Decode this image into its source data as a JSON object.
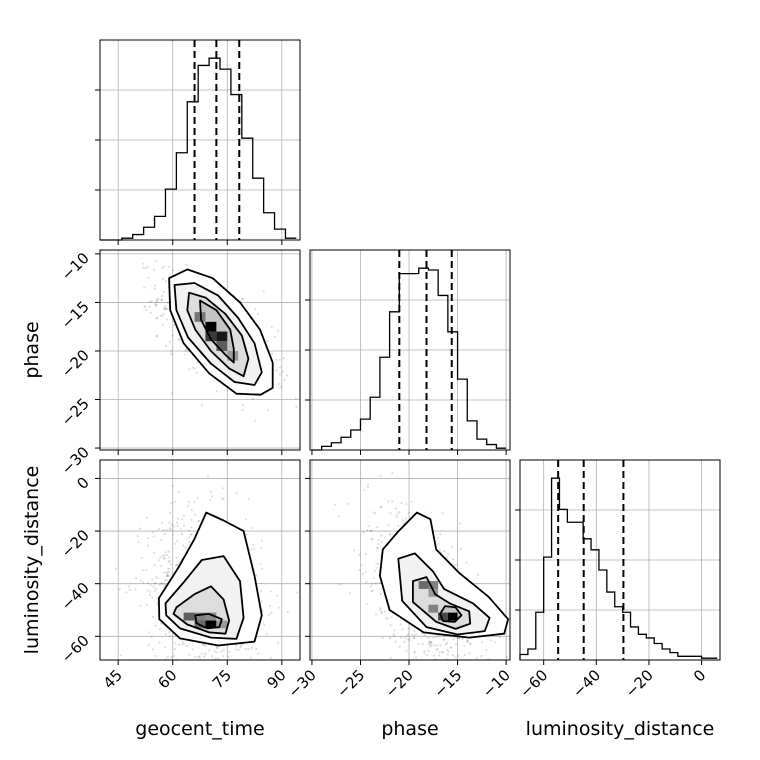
{
  "chart_data": {
    "type": "corner",
    "parameters": [
      {
        "name": "geocent_time",
        "range": [
          40,
          95
        ],
        "ticks": [
          45,
          60,
          75,
          90
        ],
        "tick_labels": [
          "45",
          "60",
          "75",
          "90"
        ],
        "quantiles": [
          66.0,
          72.0,
          78.3
        ],
        "histogram": {
          "bin_edges": [
            40,
            43,
            46,
            49,
            52,
            55,
            58,
            61,
            64,
            67,
            70,
            73,
            76,
            79,
            82,
            85,
            88,
            91,
            94
          ],
          "heights": [
            0,
            0,
            0.01,
            0.03,
            0.07,
            0.13,
            0.28,
            0.48,
            0.76,
            0.96,
            1.0,
            0.94,
            0.8,
            0.56,
            0.34,
            0.15,
            0.06,
            0.01
          ]
        }
      },
      {
        "name": "phase",
        "range": [
          -30.2,
          -9.6
        ],
        "ticks": [
          -30,
          -25,
          -20,
          -15,
          -10
        ],
        "tick_labels": [
          "−30",
          "−25",
          "−20",
          "−15",
          "−10"
        ],
        "quantiles": [
          -21.0,
          -18.2,
          -15.6
        ],
        "histogram": {
          "bin_edges": [
            -30.0,
            -29.0,
            -28.0,
            -27.0,
            -26.0,
            -25.0,
            -24.0,
            -23.0,
            -22.0,
            -21.0,
            -20.0,
            -19.0,
            -18.0,
            -17.0,
            -16.0,
            -15.0,
            -14.0,
            -13.0,
            -12.0,
            -11.0,
            -10.0
          ],
          "heights": [
            0,
            0.02,
            0.04,
            0.07,
            0.11,
            0.17,
            0.29,
            0.51,
            0.76,
            0.97,
            0.97,
            1.0,
            0.99,
            0.85,
            0.65,
            0.39,
            0.16,
            0.06,
            0.03,
            0.01
          ]
        }
      },
      {
        "name": "luminosity_distance",
        "range": [
          -69,
          7
        ],
        "ticks": [
          -60,
          -40,
          -20,
          0
        ],
        "tick_labels": [
          "−60",
          "−40",
          "−20",
          "0"
        ],
        "quantiles": [
          -54.5,
          -44.8,
          -29.7
        ],
        "histogram": {
          "bin_edges": [
            -69,
            -66,
            -63,
            -60,
            -57,
            -54,
            -51,
            -48,
            -45,
            -42,
            -39,
            -36,
            -33,
            -30,
            -27,
            -24,
            -21,
            -18,
            -15,
            -12,
            -9,
            -6,
            -3,
            0,
            3,
            6
          ],
          "heights": [
            0.03,
            0.06,
            0.26,
            0.56,
            0.99,
            0.82,
            0.75,
            0.75,
            0.66,
            0.6,
            0.49,
            0.37,
            0.29,
            0.26,
            0.18,
            0.14,
            0.12,
            0.09,
            0.06,
            0.04,
            0.02,
            0.02,
            0.02,
            0.01,
            0.01
          ]
        }
      }
    ],
    "pairs": [
      {
        "x": "geocent_time",
        "y": "phase",
        "mean": [
          72,
          -18.2
        ],
        "sd": [
          7.5,
          2.7
        ],
        "corr": -0.65,
        "cells": [
          {
            "x": 70.5,
            "y": -17.5,
            "w": 3,
            "h": 1,
            "v": 1.0
          },
          {
            "x": 73.5,
            "y": -18.5,
            "w": 3,
            "h": 1,
            "v": 0.9
          },
          {
            "x": 70.5,
            "y": -18.5,
            "w": 3,
            "h": 1,
            "v": 0.75
          },
          {
            "x": 67.5,
            "y": -16.5,
            "w": 3,
            "h": 1,
            "v": 0.5
          },
          {
            "x": 73.5,
            "y": -19.5,
            "w": 3,
            "h": 1,
            "v": 0.6
          },
          {
            "x": 76.5,
            "y": -20.5,
            "w": 3,
            "h": 1,
            "v": 0.35
          }
        ],
        "contours": [
          [
            [
              67.5,
              -14.8
            ],
            [
              72,
              -15.8
            ],
            [
              75.8,
              -17.8
            ],
            [
              76.8,
              -19.8
            ],
            [
              76.8,
              -21.2
            ],
            [
              74.5,
              -20.4
            ],
            [
              70.5,
              -18.8
            ],
            [
              67.8,
              -16.8
            ]
          ],
          [
            [
              64.5,
              -14
            ],
            [
              69,
              -14.5
            ],
            [
              74.5,
              -16.2
            ],
            [
              79,
              -18.4
            ],
            [
              80.8,
              -20.8
            ],
            [
              79.5,
              -22.6
            ],
            [
              75.5,
              -21.8
            ],
            [
              70.5,
              -20
            ],
            [
              66.2,
              -17.8
            ],
            [
              64,
              -15.8
            ]
          ],
          [
            [
              60.5,
              -13.2
            ],
            [
              66,
              -13
            ],
            [
              72.5,
              -14.3
            ],
            [
              78,
              -16.6
            ],
            [
              82.5,
              -19.2
            ],
            [
              84.5,
              -22.2
            ],
            [
              82.5,
              -23.5
            ],
            [
              77,
              -23.2
            ],
            [
              70.5,
              -21.3
            ],
            [
              64.2,
              -18.6
            ],
            [
              61,
              -15.8
            ]
          ],
          [
            [
              59,
              -12.5
            ],
            [
              64,
              -11.6
            ],
            [
              71,
              -12.5
            ],
            [
              78.5,
              -15
            ],
            [
              84,
              -17.8
            ],
            [
              87.5,
              -21.2
            ],
            [
              87.5,
              -23.8
            ],
            [
              84.2,
              -24.5
            ],
            [
              77.5,
              -24.4
            ],
            [
              70,
              -22.3
            ],
            [
              63,
              -19.2
            ],
            [
              59.3,
              -15.8
            ]
          ]
        ]
      },
      {
        "x": "geocent_time",
        "y": "luminosity_distance",
        "mean": [
          69,
          -44
        ],
        "sd": [
          7.5,
          15
        ],
        "corr": -0.12,
        "cells": [
          {
            "x": 70.5,
            "y": -55.5,
            "w": 3,
            "h": 3,
            "v": 1.0
          },
          {
            "x": 67.5,
            "y": -55.5,
            "w": 3,
            "h": 3,
            "v": 0.55
          },
          {
            "x": 64.5,
            "y": -52.5,
            "w": 3,
            "h": 3,
            "v": 0.6
          },
          {
            "x": 67.5,
            "y": -52.5,
            "w": 3,
            "h": 3,
            "v": 0.45
          },
          {
            "x": 70.5,
            "y": -52.5,
            "w": 3,
            "h": 3,
            "v": 0.4
          },
          {
            "x": 73.5,
            "y": -55.5,
            "w": 3,
            "h": 3,
            "v": 0.35
          }
        ],
        "contours": [
          [
            [
              66.2,
              -52
            ],
            [
              70,
              -51.5
            ],
            [
              73.5,
              -53.5
            ],
            [
              72.8,
              -56.5
            ],
            [
              69.5,
              -57
            ],
            [
              66.5,
              -55
            ]
          ],
          [
            [
              61,
              -49
            ],
            [
              66,
              -44
            ],
            [
              70.5,
              -41
            ],
            [
              74,
              -46
            ],
            [
              75.5,
              -54
            ],
            [
              74.5,
              -59
            ],
            [
              70,
              -58.5
            ],
            [
              64,
              -55.5
            ],
            [
              60.2,
              -51.5
            ]
          ],
          [
            [
              58,
              -47.5
            ],
            [
              63,
              -39.5
            ],
            [
              68,
              -31
            ],
            [
              74,
              -29.5
            ],
            [
              78.5,
              -39
            ],
            [
              79.5,
              -53
            ],
            [
              77.5,
              -61
            ],
            [
              70.5,
              -60.5
            ],
            [
              62,
              -57
            ],
            [
              58.2,
              -52
            ]
          ],
          [
            [
              56.2,
              -45.5
            ],
            [
              61.5,
              -34
            ],
            [
              66,
              -23
            ],
            [
              69.2,
              -13
            ],
            [
              74,
              -16
            ],
            [
              79.5,
              -20
            ],
            [
              82.5,
              -37
            ],
            [
              84.5,
              -52
            ],
            [
              82.5,
              -62
            ],
            [
              72.5,
              -63.5
            ],
            [
              62,
              -60.8
            ],
            [
              56.3,
              -53.5
            ]
          ]
        ]
      },
      {
        "x": "phase",
        "y": "luminosity_distance",
        "mean": [
          -18.5,
          -44
        ],
        "sd": [
          2.7,
          15
        ],
        "corr": -0.55,
        "cells": [
          {
            "x": -15.5,
            "y": -52.5,
            "w": 1,
            "h": 3,
            "v": 1.0
          },
          {
            "x": -16.5,
            "y": -52.5,
            "w": 1,
            "h": 3,
            "v": 0.7
          },
          {
            "x": -17.5,
            "y": -49.5,
            "w": 1,
            "h": 3,
            "v": 0.45
          },
          {
            "x": -18.5,
            "y": -40.5,
            "w": 1,
            "h": 3,
            "v": 0.55
          },
          {
            "x": -17.5,
            "y": -40.5,
            "w": 1,
            "h": 3,
            "v": 0.45
          },
          {
            "x": -17.5,
            "y": -43.5,
            "w": 1,
            "h": 3,
            "v": 0.35
          }
        ],
        "contours": [
          [
            [
              -16.3,
              -48.5
            ],
            [
              -15.2,
              -49
            ],
            [
              -14.6,
              -52
            ],
            [
              -15.3,
              -54.5
            ],
            [
              -16.5,
              -54.2
            ],
            [
              -16.8,
              -51.5
            ]
          ],
          [
            [
              -19.6,
              -39
            ],
            [
              -18.2,
              -37.5
            ],
            [
              -17.3,
              -44
            ],
            [
              -15.8,
              -47.5
            ],
            [
              -13.8,
              -50.5
            ],
            [
              -13.7,
              -55.2
            ],
            [
              -15.2,
              -57.2
            ],
            [
              -17.2,
              -54.5
            ],
            [
              -19.6,
              -47
            ]
          ],
          [
            [
              -21.1,
              -30.5
            ],
            [
              -19.4,
              -28.5
            ],
            [
              -17.5,
              -35.5
            ],
            [
              -16.4,
              -42
            ],
            [
              -13.4,
              -47.5
            ],
            [
              -11.7,
              -53
            ],
            [
              -12.2,
              -58
            ],
            [
              -15,
              -59.3
            ],
            [
              -18.2,
              -56.5
            ],
            [
              -20.7,
              -46.5
            ]
          ],
          [
            [
              -22.7,
              -27
            ],
            [
              -21.2,
              -20.5
            ],
            [
              -19.2,
              -13
            ],
            [
              -17.8,
              -15.5
            ],
            [
              -17.2,
              -27
            ],
            [
              -14.8,
              -36
            ],
            [
              -11.8,
              -45
            ],
            [
              -9.8,
              -53.5
            ],
            [
              -10.2,
              -59
            ],
            [
              -13.8,
              -60.5
            ],
            [
              -18.5,
              -58.5
            ],
            [
              -22,
              -50
            ],
            [
              -23,
              -37
            ]
          ]
        ]
      }
    ]
  }
}
